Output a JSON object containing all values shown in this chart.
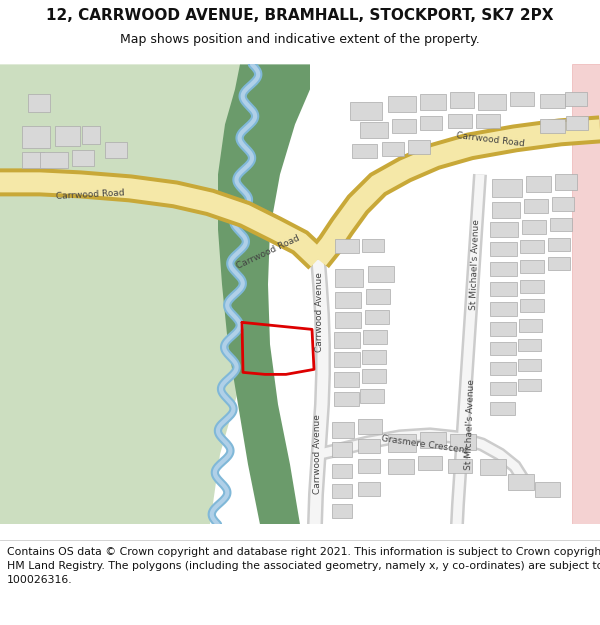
{
  "title": "12, CARRWOOD AVENUE, BRAMHALL, STOCKPORT, SK7 2PX",
  "subtitle": "Map shows position and indicative extent of the property.",
  "footer_line1": "Contains OS data © Crown copyright and database right 2021. This information is subject to Crown copyright and database rights 2023 and is reproduced with the permission of",
  "footer_line2": "HM Land Registry. The polygons (including the associated geometry, namely x, y co-ordinates) are subject to Crown copyright and database rights 2023 Ordnance Survey",
  "footer_line3": "100026316.",
  "bg_color": "#ffffff",
  "green_dark": "#6b9b6b",
  "green_light": "#ccdec0",
  "road_yellow_fill": "#f5e8a8",
  "road_yellow_edge": "#c8a838",
  "building_face": "#d8d8d8",
  "building_edge": "#aaaaaa",
  "river_color": "#80b8d8",
  "river_light": "#b0d0e8",
  "red_plot": "#dd0000",
  "pink_area": "#f0c0c0",
  "road_bg": "#eeeeee",
  "road_edge": "#cccccc",
  "title_fontsize": 11,
  "subtitle_fontsize": 9,
  "footer_fontsize": 7.8,
  "road_label_fontsize": 6.5
}
